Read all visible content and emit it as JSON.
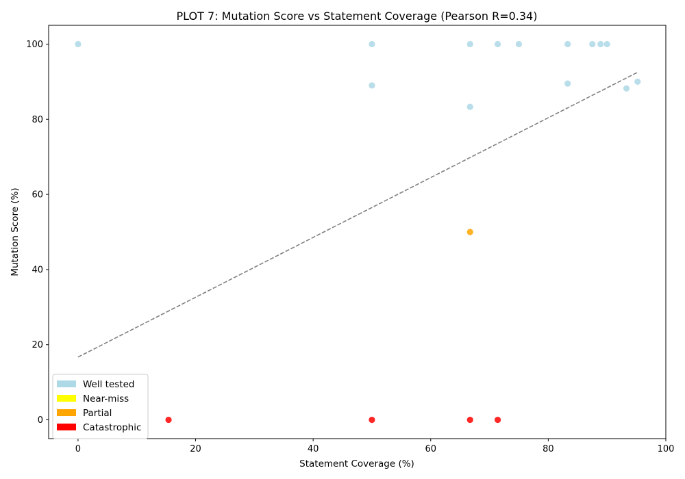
{
  "chart_data": {
    "type": "scatter",
    "title": "PLOT 7: Mutation Score vs Statement Coverage (Pearson R=0.34)",
    "xlabel": "Statement Coverage (%)",
    "ylabel": "Mutation Score (%)",
    "xlim": [
      -5,
      100
    ],
    "ylim": [
      -5,
      105
    ],
    "xticks": [
      0,
      20,
      40,
      60,
      80,
      100
    ],
    "yticks": [
      0,
      20,
      40,
      60,
      80,
      100
    ],
    "grid": false,
    "legend_position": "lower-left",
    "legend": [
      {
        "label": "Well tested",
        "color": "#add8e6"
      },
      {
        "label": "Near-miss",
        "color": "#ffff00"
      },
      {
        "label": "Partial",
        "color": "#ffa500"
      },
      {
        "label": "Catastrophic",
        "color": "#ff0000"
      }
    ],
    "series": [
      {
        "name": "Well tested",
        "color": "#add8e6",
        "points": [
          [
            0,
            100
          ],
          [
            50,
            100
          ],
          [
            50,
            89
          ],
          [
            66.7,
            100
          ],
          [
            66.7,
            83.3
          ],
          [
            71.4,
            100
          ],
          [
            75,
            100
          ],
          [
            83.3,
            100
          ],
          [
            83.3,
            89.5
          ],
          [
            87.5,
            100
          ],
          [
            88.9,
            100
          ],
          [
            90,
            100
          ],
          [
            93.3,
            88.2
          ],
          [
            95.2,
            90
          ]
        ]
      },
      {
        "name": "Near-miss",
        "color": "#ffff00",
        "points": []
      },
      {
        "name": "Partial",
        "color": "#ffa500",
        "points": [
          [
            66.7,
            50
          ]
        ]
      },
      {
        "name": "Catastrophic",
        "color": "#ff0000",
        "points": [
          [
            15.4,
            0
          ],
          [
            50,
            0
          ],
          [
            66.7,
            0
          ],
          [
            71.4,
            0
          ]
        ]
      }
    ],
    "trend_line": {
      "style": "dashed",
      "color": "#808080",
      "x": [
        0,
        95.2
      ],
      "y": [
        16.7,
        92.5
      ]
    }
  }
}
